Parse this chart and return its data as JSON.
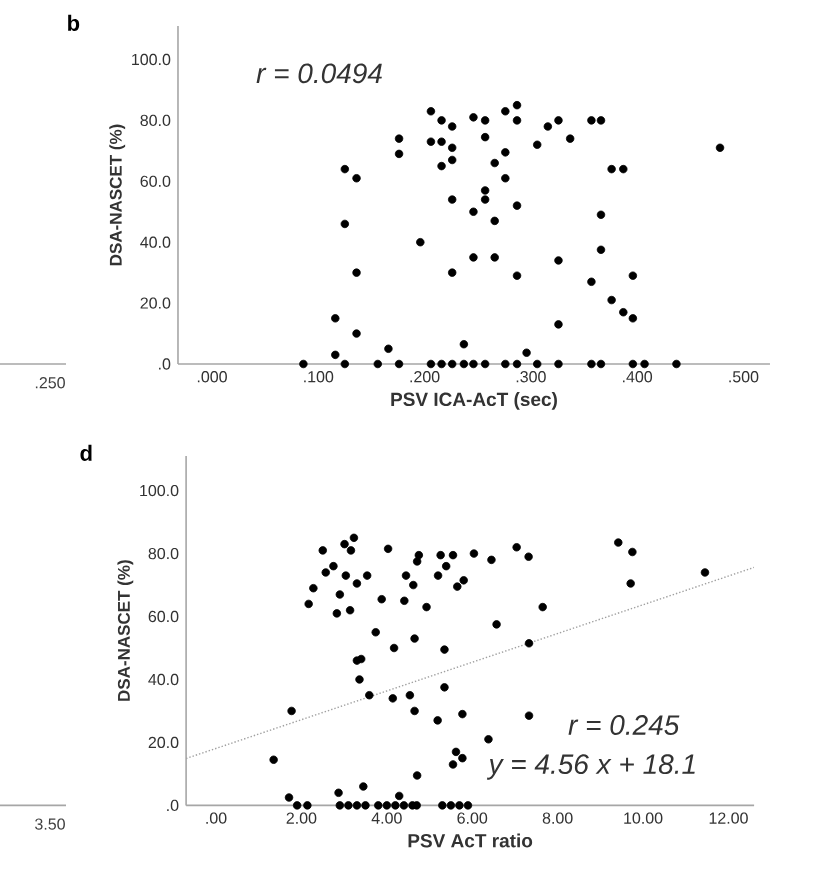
{
  "chart_data": [
    {
      "type": "other",
      "annotations": [
        ".250"
      ]
    },
    {
      "type": "scatter",
      "title": "b",
      "xlabel": "PSV ICA-AcT (sec)",
      "ylabel": "DSA-NASCET (%)",
      "annotations": [
        "r = 0.0494"
      ],
      "xlim": [
        -0.032,
        0.525
      ],
      "ylim": [
        0,
        111
      ],
      "xticks": [
        {
          "value": 0,
          "label": ".000"
        },
        {
          "value": 0.1,
          "label": ".100"
        },
        {
          "value": 0.2,
          "label": ".200"
        },
        {
          "value": 0.3,
          "label": ".300"
        },
        {
          "value": 0.4,
          "label": ".400"
        },
        {
          "value": 0.5,
          "label": ".500"
        }
      ],
      "yticks": [
        {
          "value": 0,
          "label": ".0"
        },
        {
          "value": 20,
          "label": "20.0"
        },
        {
          "value": 40,
          "label": "40.0"
        },
        {
          "value": 60,
          "label": "60.0"
        },
        {
          "value": 80,
          "label": "80.0"
        },
        {
          "value": 100,
          "label": "100.0"
        }
      ],
      "marker": "circle",
      "series": [
        {
          "color": "#000000",
          "x": [
            0.086,
            0.116,
            0.116,
            0.125,
            0.125,
            0.125,
            0.136,
            0.136,
            0.136,
            0.156,
            0.166,
            0.176,
            0.176,
            0.176,
            0.196,
            0.206,
            0.206,
            0.206,
            0.216,
            0.216,
            0.216,
            0.216,
            0.226,
            0.226,
            0.226,
            0.226,
            0.226,
            0.226,
            0.237,
            0.237,
            0.246,
            0.246,
            0.246,
            0.246,
            0.257,
            0.257,
            0.257,
            0.257,
            0.257,
            0.266,
            0.266,
            0.266,
            0.276,
            0.276,
            0.276,
            0.276,
            0.287,
            0.287,
            0.287,
            0.287,
            0.287,
            0.296,
            0.306,
            0.306,
            0.316,
            0.326,
            0.326,
            0.326,
            0.326,
            0.337,
            0.357,
            0.357,
            0.357,
            0.366,
            0.366,
            0.366,
            0.366,
            0.376,
            0.376,
            0.387,
            0.387,
            0.396,
            0.396,
            0.396,
            0.407,
            0.437,
            0.478
          ],
          "values": [
            0,
            15,
            3,
            64,
            46,
            0,
            61,
            30,
            10,
            0,
            5,
            0,
            74,
            69,
            40,
            0,
            83,
            73,
            80,
            73,
            65,
            0,
            78,
            71,
            67,
            54,
            30,
            0,
            6.5,
            0,
            81,
            50,
            35,
            0,
            80,
            74.5,
            57,
            54,
            0,
            66,
            47,
            35,
            83,
            69.5,
            61,
            0,
            85,
            80,
            52,
            29,
            0,
            3.7,
            72,
            0,
            78,
            80,
            34,
            13,
            0,
            74,
            80,
            27,
            0,
            80,
            49,
            37.5,
            0,
            64,
            21,
            64,
            17,
            15,
            29,
            0,
            0,
            0,
            71
          ]
        }
      ]
    },
    {
      "type": "other",
      "annotations": [
        "3.50"
      ]
    },
    {
      "type": "scatter",
      "title": "d",
      "xlabel": "PSV AcT ratio",
      "ylabel": "DSA-NASCET (%)",
      "annotations": [
        "r = 0.245",
        "y = 4.56 x + 18.1"
      ],
      "xlim": [
        -0.7,
        12.6
      ],
      "ylim": [
        0,
        111
      ],
      "xticks": [
        {
          "value": 0,
          "label": ".00"
        },
        {
          "value": 2,
          "label": "2.00"
        },
        {
          "value": 4,
          "label": "4.00"
        },
        {
          "value": 6,
          "label": "6.00"
        },
        {
          "value": 8,
          "label": "8.00"
        },
        {
          "value": 10,
          "label": "10.00"
        },
        {
          "value": 12,
          "label": "12.00"
        }
      ],
      "yticks": [
        {
          "value": 0,
          "label": ".0"
        },
        {
          "value": 20,
          "label": "20.0"
        },
        {
          "value": 40,
          "label": "40.0"
        },
        {
          "value": 60,
          "label": "60.0"
        },
        {
          "value": 80,
          "label": "80.0"
        },
        {
          "value": 100,
          "label": "100.0"
        }
      ],
      "marker": "circle",
      "series": [
        {
          "color": "#000000",
          "x": [
            1.35,
            1.77,
            1.71,
            1.9,
            2.14,
            2.17,
            2.28,
            2.5,
            2.57,
            2.75,
            2.83,
            2.9,
            2.87,
            2.9,
            3.01,
            3.04,
            3.16,
            3.14,
            3.1,
            3.23,
            3.3,
            3.3,
            3.3,
            3.4,
            3.36,
            3.45,
            3.5,
            3.54,
            3.59,
            3.74,
            3.8,
            3.88,
            4.0,
            4.03,
            4.17,
            4.14,
            4.2,
            4.29,
            4.4,
            4.41,
            4.45,
            4.54,
            4.6,
            4.62,
            4.65,
            4.65,
            4.7,
            4.71,
            4.75,
            4.71,
            4.93,
            5.19,
            5.2,
            5.26,
            5.3,
            5.35,
            5.35,
            5.39,
            5.5,
            5.55,
            5.55,
            5.62,
            5.7,
            5.77,
            5.65,
            5.8,
            5.77,
            5.9,
            6.04,
            6.38,
            6.45,
            6.57,
            7.04,
            7.32,
            7.33,
            7.33,
            7.65,
            9.42,
            9.75,
            9.71,
            11.45
          ],
          "values": [
            14.5,
            30,
            2.5,
            0,
            0,
            64,
            69,
            81,
            74,
            76,
            61,
            67,
            4,
            0,
            83,
            73,
            81,
            62,
            0,
            85,
            70.5,
            46,
            0,
            46.5,
            40,
            6,
            0,
            73,
            35,
            55,
            0,
            65.5,
            0,
            81.5,
            50,
            34,
            0,
            3,
            0,
            65,
            73,
            35,
            0,
            70,
            53,
            30,
            0,
            77.5,
            79.5,
            9.5,
            63,
            27,
            73,
            79.5,
            0,
            49.5,
            37.5,
            76,
            0,
            79.5,
            13,
            17,
            0,
            15,
            69.5,
            71.5,
            29,
            0,
            80,
            21,
            78,
            57.5,
            82,
            79,
            51.5,
            28.5,
            63,
            83.5,
            80.5,
            70.5,
            74
          ]
        },
        {
          "type": "line",
          "line_style": "dotted",
          "marker": "none",
          "color": "#a0a0a0",
          "x": [
            -0.7,
            12.6
          ],
          "values": [
            14.9,
            75.6
          ]
        }
      ]
    }
  ]
}
